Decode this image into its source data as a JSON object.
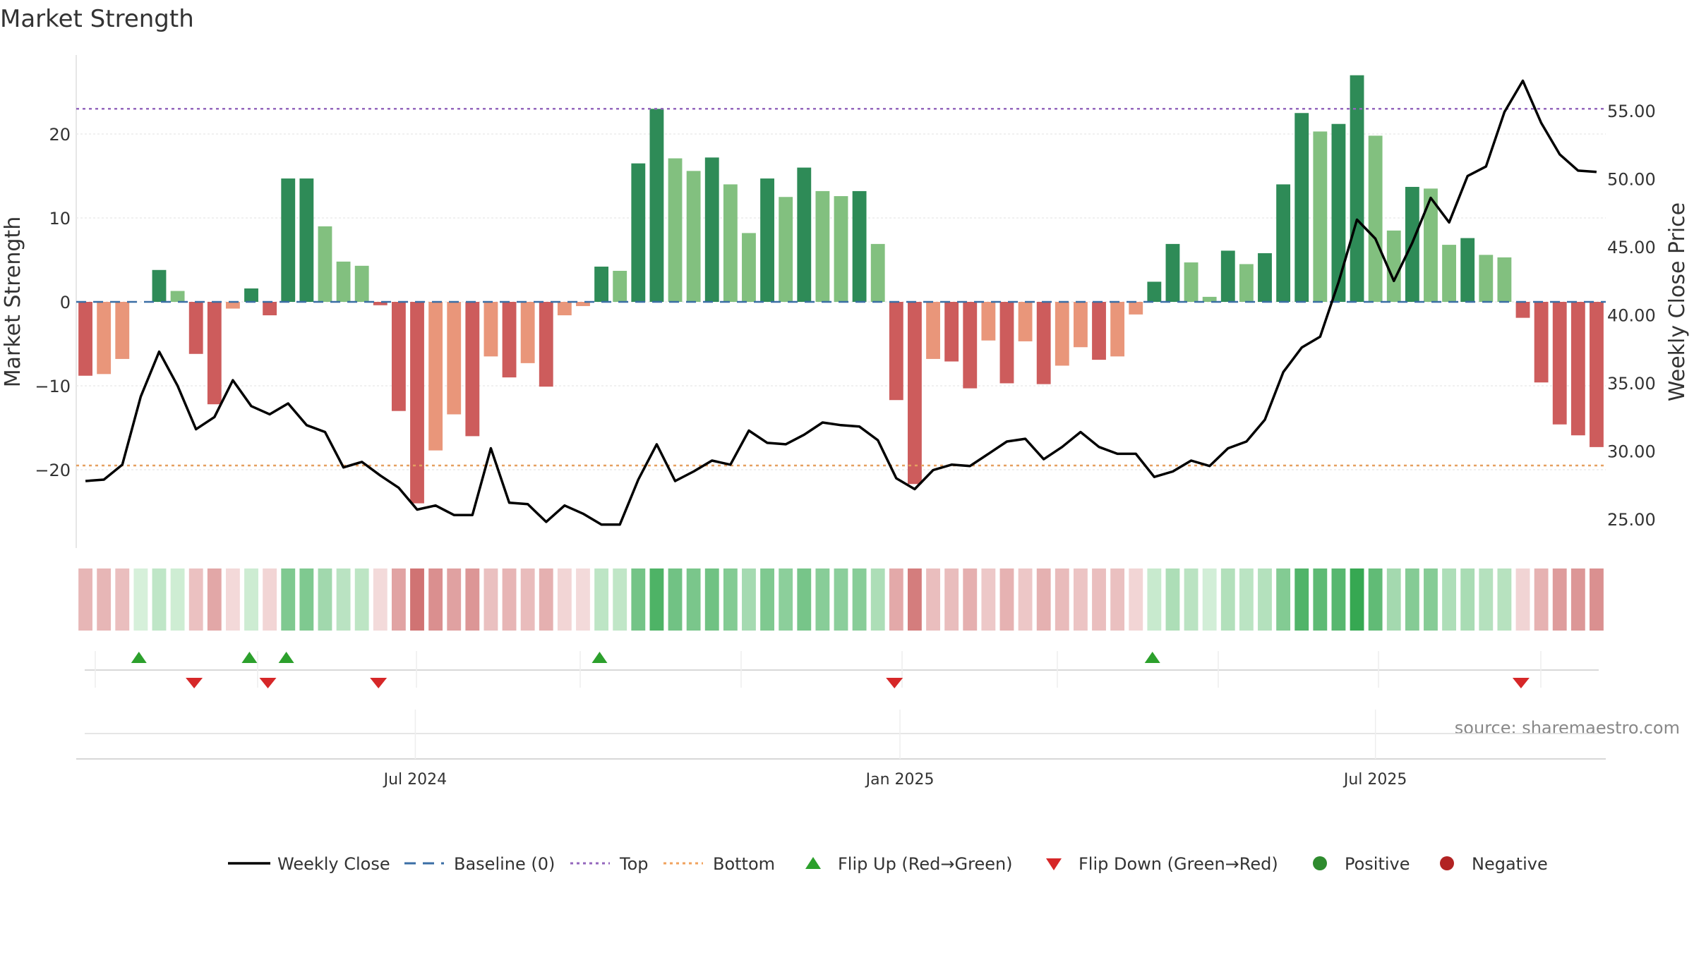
{
  "chart_data": {
    "type": "bar",
    "title": "Market Strength",
    "ylabel": "Market Strength",
    "y2label": "Weekly Close Price",
    "ylim": [
      -29,
      29
    ],
    "y2lim": [
      22.5,
      60
    ],
    "yticks": [
      -20,
      -10,
      0,
      10,
      20
    ],
    "yticklabels": [
      "−20",
      "−10",
      "0",
      "10",
      "20"
    ],
    "y2ticks": [
      25,
      30,
      35,
      40,
      45,
      50,
      55
    ],
    "y2ticklabels": [
      "25.00",
      "30.00",
      "35.00",
      "40.00",
      "45.00",
      "50.00",
      "55.00"
    ],
    "xticklabels": [
      "Jul 2024",
      "Jan 2025",
      "Jul 2025"
    ],
    "xtick_week_index": [
      18.4,
      44.7,
      70.5
    ],
    "top_level": 23,
    "bottom_level": -19.5,
    "baseline_level": 0,
    "series": [
      {
        "name": "Market Strength",
        "values": [
          -8.8,
          -8.6,
          -6.8,
          0,
          3.8,
          1.3,
          -6.2,
          -12.2,
          -0.8,
          1.6,
          -1.6,
          14.7,
          14.7,
          9,
          4.8,
          4.3,
          -0.4,
          -13,
          -24,
          -17.7,
          -13.4,
          -16,
          -6.5,
          -9,
          -7.3,
          -10.1,
          -1.6,
          -0.5,
          4.2,
          3.7,
          16.5,
          23,
          17.1,
          15.6,
          17.2,
          14,
          8.2,
          14.7,
          12.5,
          16,
          13.2,
          12.6,
          13.2,
          6.9,
          -11.7,
          -21.7,
          -6.8,
          -7.1,
          -10.3,
          -4.6,
          -9.7,
          -4.7,
          -9.8,
          -7.6,
          -5.4,
          -6.9,
          -6.5,
          -1.5,
          2.4,
          6.9,
          4.7,
          0.6,
          6.1,
          4.5,
          5.8,
          14,
          22.5,
          20.3,
          21.2,
          27,
          19.8,
          8.5,
          13.7,
          13.5,
          6.8,
          7.6,
          5.6,
          5.3,
          -1.9,
          -9.6,
          -14.6,
          -15.9,
          -17.3
        ]
      },
      {
        "name": "Weekly Close",
        "values": [
          27.8,
          27.9,
          29.0,
          34.0,
          37.3,
          34.8,
          31.6,
          32.5,
          35.2,
          33.3,
          32.7,
          33.5,
          31.9,
          31.4,
          28.8,
          29.2,
          28.2,
          27.3,
          25.7,
          26.0,
          25.3,
          25.3,
          30.2,
          26.2,
          26.1,
          24.8,
          26.0,
          25.4,
          24.6,
          24.6,
          27.9,
          30.5,
          27.8,
          28.5,
          29.3,
          29.0,
          31.5,
          30.6,
          30.5,
          31.2,
          32.1,
          31.9,
          31.8,
          30.8,
          28.0,
          27.2,
          28.6,
          29.0,
          28.9,
          29.8,
          30.7,
          30.9,
          29.4,
          30.3,
          31.4,
          30.3,
          29.8,
          29.8,
          28.1,
          28.5,
          29.3,
          28.9,
          30.2,
          30.7,
          32.3,
          35.8,
          37.6,
          38.4,
          42.4,
          47.0,
          45.6,
          42.5,
          45.3,
          48.6,
          46.8,
          50.2,
          50.9,
          54.9,
          57.2,
          54.1,
          51.8,
          50.6,
          50.5
        ]
      }
    ],
    "flips_up_week_index": [
      3.4,
      9.4,
      11.4,
      28.4,
      58.4
    ],
    "flips_down_week_index": [
      6.4,
      10.4,
      16.4,
      44.4,
      78.4
    ],
    "legend": [
      {
        "label": "Weekly Close",
        "kind": "line",
        "color": "#000000"
      },
      {
        "label": "Baseline (0)",
        "kind": "dash",
        "color": "#3a6ea5"
      },
      {
        "label": "Top",
        "kind": "dot",
        "color": "#9467bd"
      },
      {
        "label": "Bottom",
        "kind": "dot",
        "color": "#f0a35e"
      },
      {
        "label": "Flip Up (Red→Green)",
        "kind": "tri-up",
        "color": "#2ca02c"
      },
      {
        "label": "Flip Down (Green→Red)",
        "kind": "tri-down",
        "color": "#d62728"
      },
      {
        "label": "Positive",
        "kind": "circle",
        "color": "#2e8b2e"
      },
      {
        "label": "Negative",
        "kind": "circle",
        "color": "#b22222"
      }
    ],
    "legend_position": "bottom",
    "source": "source: sharemaestro.com",
    "colors": {
      "strong_pos": "#2e8b57",
      "weak_pos": "#82c07f",
      "strong_neg": "#cd5c5c",
      "weak_neg": "#e9967a",
      "price_line": "#000000",
      "baseline": "#3a6ea5",
      "top": "#9467bd",
      "bottom": "#e5a060",
      "flip_up": "#2ca02c",
      "flip_down": "#d62728"
    }
  }
}
